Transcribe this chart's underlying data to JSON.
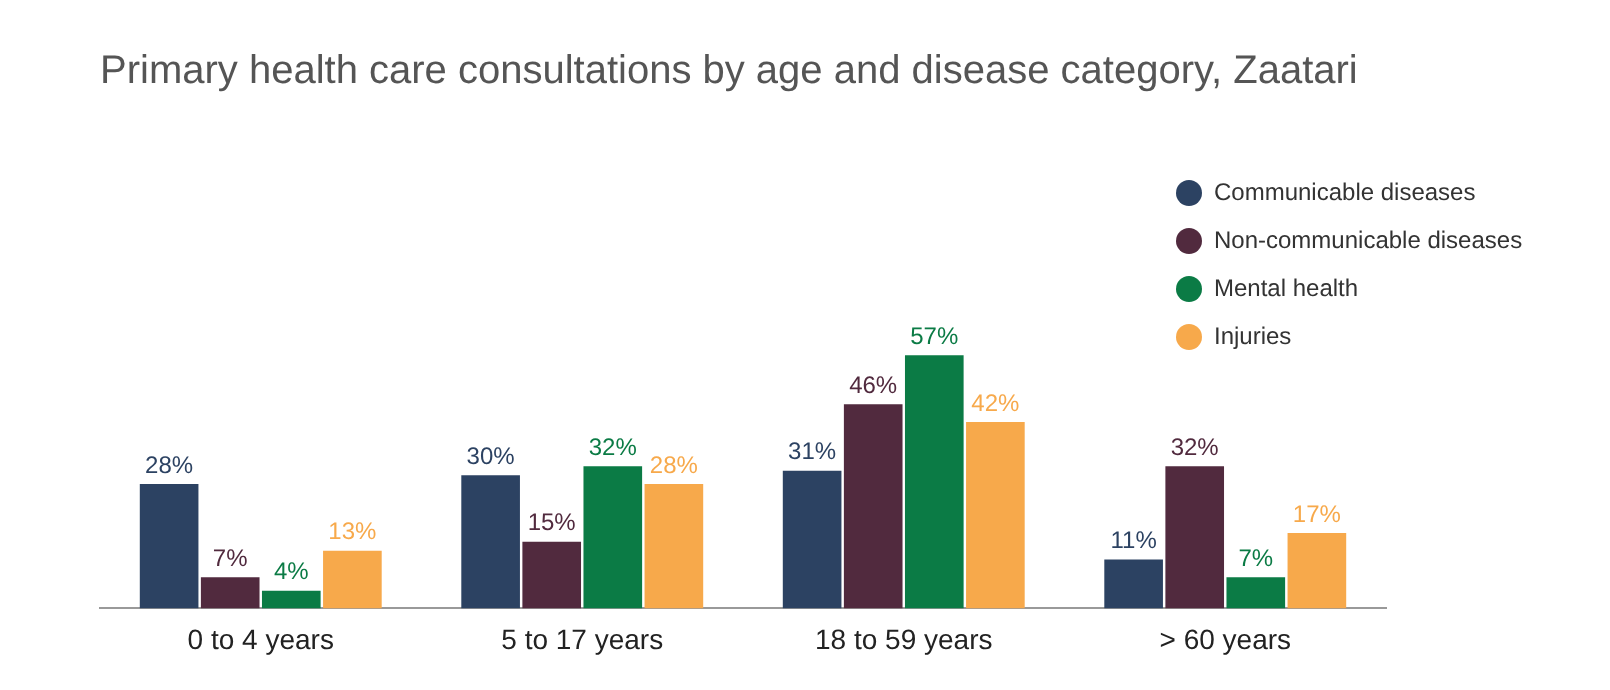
{
  "chart_data": {
    "type": "bar",
    "title": "Primary health care consultations by age and disease category, Zaatari",
    "categories": [
      "0 to 4 years",
      "5 to 17 years",
      "18 to 59 years",
      "> 60 years"
    ],
    "series": [
      {
        "name": "Communicable diseases",
        "color": "#2c4262",
        "values": [
          28,
          30,
          31,
          11
        ],
        "value_labels": [
          "28%",
          "30%",
          "31%",
          "11%"
        ]
      },
      {
        "name": "Non-communicable diseases",
        "color": "#512a3e",
        "values": [
          7,
          15,
          46,
          32
        ],
        "value_labels": [
          "7%",
          "15%",
          "46%",
          "32%"
        ]
      },
      {
        "name": "Mental health",
        "color": "#0b7b45",
        "values": [
          4,
          32,
          57,
          7
        ],
        "value_labels": [
          "4%",
          "32%",
          "57%",
          "7%"
        ]
      },
      {
        "name": "Injuries",
        "color": "#f7a94b",
        "values": [
          13,
          28,
          42,
          17
        ],
        "value_labels": [
          "13%",
          "28%",
          "42%",
          "17%"
        ]
      }
    ],
    "legend": "top right",
    "grid": false,
    "tick_labels": "x"
  }
}
